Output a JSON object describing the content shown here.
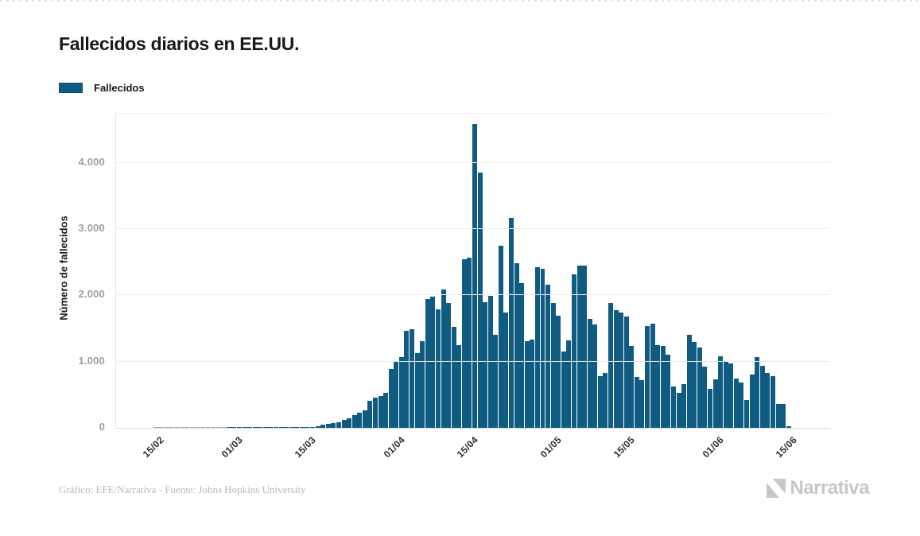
{
  "page": {
    "title": "Fallecidos diarios en EE.UU."
  },
  "legend": {
    "label": "Fallecidos",
    "swatch_color": "#0f5b81"
  },
  "footer": {
    "credit": "Gráfico: EFE/Narrativa - Fuente: Johns Hopkins University"
  },
  "logo": {
    "text": "Narrativa"
  },
  "chart_data": {
    "type": "bar",
    "title": "Fallecidos diarios en EE.UU.",
    "xlabel": "",
    "ylabel": "Número de fallecidos",
    "ylim": [
      0,
      4743
    ],
    "grid": "horizontal",
    "legend_position": "top-left",
    "bar_color": "#0f5b81",
    "y_ticks": [
      {
        "label": "0",
        "value": 0
      },
      {
        "label": "1.000",
        "value": 1000
      },
      {
        "label": "2.000",
        "value": 2000
      },
      {
        "label": "3.000",
        "value": 3000
      },
      {
        "label": "4.000",
        "value": 4000
      }
    ],
    "x_ticks": [
      {
        "label": "15/02",
        "day": 0
      },
      {
        "label": "01/03",
        "day": 15
      },
      {
        "label": "15/03",
        "day": 29
      },
      {
        "label": "01/04",
        "day": 46
      },
      {
        "label": "15/04",
        "day": 60
      },
      {
        "label": "01/05",
        "day": 76
      },
      {
        "label": "15/05",
        "day": 90
      },
      {
        "label": "01/06",
        "day": 107
      },
      {
        "label": "15/06",
        "day": 121
      }
    ],
    "series": [
      {
        "name": "Fallecidos",
        "start_label": "15/02",
        "end_label": "15/06",
        "values": [
          0,
          0,
          0,
          0,
          0,
          0,
          0,
          0,
          0,
          0,
          0,
          0,
          0,
          0,
          1,
          1,
          5,
          2,
          2,
          1,
          3,
          2,
          3,
          4,
          6,
          8,
          3,
          9,
          8,
          11,
          18,
          26,
          44,
          60,
          68,
          89,
          115,
          148,
          190,
          225,
          260,
          405,
          455,
          482,
          530,
          885,
          1005,
          1070,
          1470,
          1490,
          1130,
          1315,
          1940,
          1980,
          1790,
          2085,
          1880,
          1530,
          1245,
          2540,
          2565,
          4590,
          3855,
          1900,
          1990,
          1410,
          2755,
          1745,
          3175,
          2490,
          2180,
          1310,
          1330,
          2430,
          2400,
          2160,
          1880,
          1690,
          1155,
          1320,
          2320,
          2445,
          2450,
          1640,
          1560,
          780,
          830,
          1890,
          1780,
          1740,
          1680,
          1233,
          768,
          720,
          1540,
          1570,
          1245,
          1233,
          1100,
          624,
          524,
          664,
          1400,
          1300,
          1210,
          930,
          585,
          730,
          1075,
          1010,
          970,
          742,
          680,
          422,
          800,
          1065,
          934,
          826,
          780,
          360,
          355,
          25
        ]
      }
    ]
  }
}
